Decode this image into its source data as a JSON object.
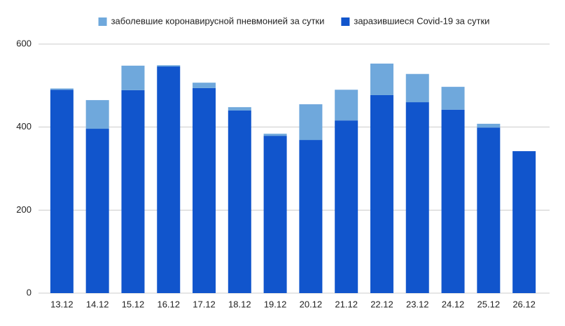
{
  "chart_data": {
    "type": "stacked_bar",
    "categories": [
      "13.12",
      "14.12",
      "15.12",
      "16.12",
      "17.12",
      "18.12",
      "19.12",
      "20.12",
      "21.12",
      "22.12",
      "23.12",
      "24.12",
      "25.12",
      "26.12"
    ],
    "series": [
      {
        "name": "заболевшие коронавирусной пневмонией за сутки",
        "color": "#6fa8dc",
        "values": [
          3,
          69,
          59,
          3,
          13,
          8,
          5,
          86,
          74,
          76,
          68,
          55,
          9,
          0
        ]
      },
      {
        "name": "заразившиеся Covid-19 за сутки",
        "color": "#1155cc",
        "values": [
          490,
          396,
          489,
          546,
          494,
          440,
          379,
          369,
          416,
          477,
          460,
          442,
          399,
          342
        ]
      }
    ],
    "ylim": [
      0,
      600
    ],
    "yticks": [
      0,
      200,
      400,
      600
    ],
    "grid": true,
    "legend": "top"
  }
}
